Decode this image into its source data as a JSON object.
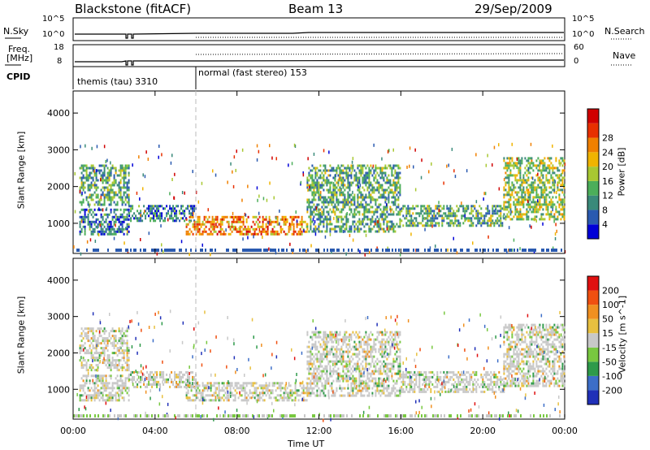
{
  "header": {
    "radar": "Blackstone (fitACF)",
    "beam": "Beam 13",
    "date": "29/Sep/2009"
  },
  "top_panels": {
    "nsky_label": "N.Sky",
    "nsearch_label": "N.Search",
    "nsky_ticks": [
      "10^5",
      "10^0"
    ],
    "nsearch_ticks": [
      "10^5",
      "10^0"
    ],
    "freq_label": "Freq.",
    "freq_unit": "[MHz]",
    "freq_ticks": [
      "18",
      "8"
    ],
    "nave_label": "Nave",
    "nave_ticks": [
      "60",
      "0"
    ],
    "cpid_label": "CPID",
    "cpid_segments": [
      {
        "label": "themis (tau) 3310",
        "start_hour": 0
      },
      {
        "label": "normal (fast stereo) 153",
        "start_hour": 6
      }
    ]
  },
  "chart_data": [
    {
      "type": "heatmap",
      "title": "",
      "xlabel": "Time UT",
      "ylabel": "Slant Range [km]",
      "x_ticks": [
        "00:00",
        "04:00",
        "08:00",
        "12:00",
        "16:00",
        "20:00",
        "00:00"
      ],
      "x_range_hours": [
        0,
        24
      ],
      "y_ticks": [
        1000,
        2000,
        3000,
        4000
      ],
      "ylim": [
        180,
        4600
      ],
      "colorbar": {
        "label": "Power [dB]",
        "ticks": [
          "4",
          "8",
          "12",
          "16",
          "20",
          "24",
          "28"
        ],
        "colors": [
          "#0000d8",
          "#2a5ab0",
          "#3a8a7a",
          "#4cae5a",
          "#a8c832",
          "#f0b400",
          "#f08000",
          "#e83000",
          "#d00000"
        ]
      },
      "echo_bands": [
        {
          "t0": 0.3,
          "t1": 2.7,
          "r0": 1500,
          "r1": 2600,
          "level": 3
        },
        {
          "t0": 0.3,
          "t1": 2.7,
          "r0": 700,
          "r1": 1400,
          "level": 2
        },
        {
          "t0": 2.7,
          "t1": 6.0,
          "r0": 1050,
          "r1": 1500,
          "level": 2
        },
        {
          "t0": 5.5,
          "t1": 11.4,
          "r0": 680,
          "r1": 1200,
          "level": 6
        },
        {
          "t0": 11.4,
          "t1": 16.0,
          "r0": 800,
          "r1": 2600,
          "level": 3
        },
        {
          "t0": 16.0,
          "t1": 21.0,
          "r0": 950,
          "r1": 1500,
          "level": 3
        },
        {
          "t0": 21.0,
          "t1": 24.0,
          "r0": 1100,
          "r1": 2800,
          "level": 4
        }
      ]
    },
    {
      "type": "heatmap",
      "title": "",
      "xlabel": "Time UT",
      "ylabel": "Slant Range [km]",
      "x_ticks": [
        "00:00",
        "04:00",
        "08:00",
        "12:00",
        "16:00",
        "20:00",
        "00:00"
      ],
      "x_range_hours": [
        0,
        24
      ],
      "y_ticks": [
        1000,
        2000,
        3000,
        4000
      ],
      "ylim": [
        180,
        4600
      ],
      "colorbar": {
        "label": "Velocity [m s^-1]",
        "ticks": [
          "200",
          "100",
          "50",
          "15",
          "-15",
          "-50",
          "-100",
          "-200"
        ],
        "colors": [
          "#2030b8",
          "#3c6ec8",
          "#2e9a4a",
          "#78c840",
          "#c8c8c8",
          "#e8c040",
          "#f09020",
          "#f05010",
          "#e01010"
        ]
      },
      "echo_bands": [
        {
          "t0": 0.3,
          "t1": 2.7,
          "r0": 1500,
          "r1": 2700,
          "level": 4
        },
        {
          "t0": 0.3,
          "t1": 2.7,
          "r0": 700,
          "r1": 1400,
          "level": 4
        },
        {
          "t0": 2.7,
          "t1": 6.0,
          "r0": 1050,
          "r1": 1500,
          "level": 4
        },
        {
          "t0": 5.5,
          "t1": 11.4,
          "r0": 700,
          "r1": 1200,
          "level": 4
        },
        {
          "t0": 11.4,
          "t1": 16.0,
          "r0": 800,
          "r1": 2600,
          "level": 4
        },
        {
          "t0": 16.0,
          "t1": 21.0,
          "r0": 950,
          "r1": 1500,
          "level": 4
        },
        {
          "t0": 21.0,
          "t1": 24.0,
          "r0": 1100,
          "r1": 2800,
          "level": 4
        }
      ]
    }
  ]
}
